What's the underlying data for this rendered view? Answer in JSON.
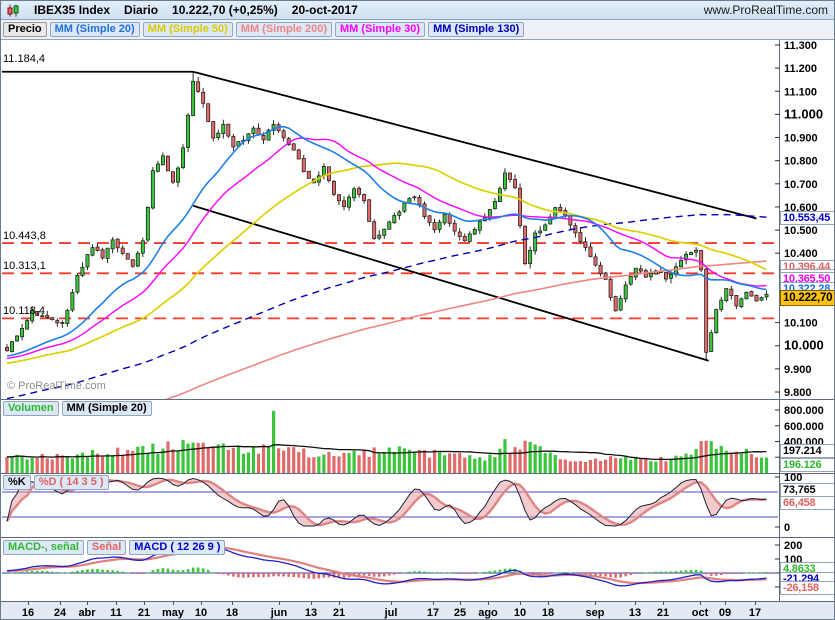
{
  "titlebar": {
    "symbol": "IBEX35 Index",
    "timeframe": "Diario",
    "last_price": "10.222,70 (+0,25%)",
    "date": "20-oct-2017",
    "site": "www.ProRealTime.com"
  },
  "price_legend": {
    "label": "Precio",
    "overlays": [
      {
        "label": "MM (Simple 20)",
        "color": "#1f6fe0"
      },
      {
        "label": "MM (Simple 50)",
        "color": "#d8cc00"
      },
      {
        "label": "MM (Simple 200)",
        "color": "#ef8585"
      },
      {
        "label": "MM (Simple 30)",
        "color": "#ff00ff"
      },
      {
        "label": "MM (Simple 130)",
        "color": "#0000b4"
      }
    ]
  },
  "price_panel": {
    "watermark": "© ProRealTime.com",
    "boxes": {
      "mm130": "10.553,45",
      "mm200": "10.396,44",
      "mm30": "10.365,50",
      "mm20": "10.322,28",
      "current": "10.222,70"
    }
  },
  "volume_panel": {
    "legend": [
      "Volumen",
      "MM (Simple 20)"
    ],
    "ma_box": "197.214",
    "vol_box": "196.126"
  },
  "stoch_panel": {
    "legend": [
      "%K",
      "%D ( 14 3 5 )"
    ],
    "k_box": "73,765",
    "d_box": "66,458"
  },
  "macd_panel": {
    "legend": [
      "MACD-, señal",
      "Señal",
      "MACD ( 12 26 9 )"
    ],
    "hist_box": "4,8633",
    "macd_box": "-21,294",
    "signal_box": "-26,158"
  },
  "chart_data": {
    "type": "candlestick",
    "title": "IBEX35 Index Diario 20-oct-2017",
    "bars": 152,
    "ylim": [
      9770,
      11322
    ],
    "last_close": 10222.7,
    "price_anchors": [
      [
        0,
        9980
      ],
      [
        3,
        10080
      ],
      [
        5,
        10150
      ],
      [
        8,
        10115
      ],
      [
        11,
        10090
      ],
      [
        14,
        10300
      ],
      [
        17,
        10430
      ],
      [
        19,
        10380
      ],
      [
        21,
        10450
      ],
      [
        23,
        10400
      ],
      [
        25,
        10350
      ],
      [
        27,
        10460
      ],
      [
        29,
        10750
      ],
      [
        31,
        10820
      ],
      [
        33,
        10700
      ],
      [
        35,
        10850
      ],
      [
        37,
        11150
      ],
      [
        39,
        11050
      ],
      [
        41,
        10900
      ],
      [
        43,
        10950
      ],
      [
        45,
        10860
      ],
      [
        47,
        10890
      ],
      [
        49,
        10940
      ],
      [
        51,
        10890
      ],
      [
        53,
        10960
      ],
      [
        55,
        10900
      ],
      [
        57,
        10850
      ],
      [
        59,
        10760
      ],
      [
        61,
        10700
      ],
      [
        63,
        10780
      ],
      [
        65,
        10650
      ],
      [
        67,
        10600
      ],
      [
        69,
        10680
      ],
      [
        71,
        10620
      ],
      [
        73,
        10460
      ],
      [
        75,
        10510
      ],
      [
        77,
        10560
      ],
      [
        79,
        10610
      ],
      [
        81,
        10650
      ],
      [
        83,
        10560
      ],
      [
        85,
        10500
      ],
      [
        87,
        10560
      ],
      [
        89,
        10500
      ],
      [
        91,
        10450
      ],
      [
        93,
        10510
      ],
      [
        95,
        10560
      ],
      [
        97,
        10620
      ],
      [
        99,
        10740
      ],
      [
        101,
        10690
      ],
      [
        103,
        10360
      ],
      [
        105,
        10480
      ],
      [
        107,
        10520
      ],
      [
        109,
        10600
      ],
      [
        111,
        10560
      ],
      [
        113,
        10480
      ],
      [
        115,
        10420
      ],
      [
        117,
        10350
      ],
      [
        119,
        10280
      ],
      [
        121,
        10150
      ],
      [
        123,
        10260
      ],
      [
        125,
        10340
      ],
      [
        127,
        10300
      ],
      [
        129,
        10330
      ],
      [
        131,
        10290
      ],
      [
        133,
        10340
      ],
      [
        135,
        10400
      ],
      [
        137,
        10420
      ],
      [
        138,
        10330
      ],
      [
        139,
        9965
      ],
      [
        141,
        10150
      ],
      [
        143,
        10250
      ],
      [
        145,
        10180
      ],
      [
        147,
        10230
      ],
      [
        149,
        10190
      ],
      [
        151,
        10222.7
      ]
    ],
    "prehistory_anchors": [
      [
        -200,
        9300
      ],
      [
        -160,
        9200
      ],
      [
        -120,
        9500
      ],
      [
        -80,
        9750
      ],
      [
        -40,
        9900
      ],
      [
        -1,
        9970
      ]
    ],
    "moving_averages": [
      {
        "name": "MM Simple 200",
        "period": 200,
        "color": "#ef8585",
        "style": "solid",
        "width": 1.6,
        "last_label": "10.396,44"
      },
      {
        "name": "MM Simple 130",
        "period": 130,
        "color": "#0000b8",
        "style": "dashed",
        "width": 1.4,
        "last_label": "10.553,45"
      },
      {
        "name": "MM Simple 50",
        "period": 50,
        "color": "#ddd000",
        "style": "solid",
        "width": 1.7
      },
      {
        "name": "MM Simple 30",
        "period": 30,
        "color": "#ff00ff",
        "style": "solid",
        "width": 1.4,
        "last_label": "10.365,50"
      },
      {
        "name": "MM Simple 20",
        "period": 20,
        "color": "#1f7fe8",
        "style": "solid",
        "width": 1.6,
        "last_label": "10.322,28"
      }
    ],
    "levels": [
      {
        "price": 10443.8,
        "label": "10.443,8"
      },
      {
        "price": 10313.1,
        "label": "10.313,1"
      },
      {
        "price": 10118.4,
        "label": "10.118,4"
      }
    ],
    "peak": {
      "price": 11184.4,
      "label": "11.184,4"
    },
    "channel_upper": [
      [
        37,
        11184.4
      ],
      [
        149,
        10550
      ]
    ],
    "channel_lower": [
      [
        37,
        10605
      ],
      [
        139.5,
        9935
      ]
    ],
    "price_ticks": [
      [
        11300,
        "11.300",
        0
      ],
      [
        11200,
        "11.200",
        0
      ],
      [
        11100,
        "11.100",
        0
      ],
      [
        11000,
        "11.000",
        1
      ],
      [
        10900,
        "10.900",
        0
      ],
      [
        10800,
        "10.800",
        0
      ],
      [
        10700,
        "10.700",
        0
      ],
      [
        10600,
        "10.600",
        0
      ],
      [
        10500,
        "10.500",
        0
      ],
      [
        10400,
        "10.400",
        0
      ],
      [
        10100,
        "10.100",
        0
      ],
      [
        10000,
        "10.000",
        1
      ],
      [
        9900,
        "9.900",
        0
      ],
      [
        9800,
        "9.800",
        0
      ]
    ],
    "volume": {
      "ma_period": 20,
      "last": 196126,
      "ma_last": 197214,
      "anchors": [
        [
          0,
          180000
        ],
        [
          10,
          220000
        ],
        [
          20,
          260000
        ],
        [
          30,
          310000
        ],
        [
          37,
          380000
        ],
        [
          45,
          280000
        ],
        [
          52,
          320000
        ],
        [
          54,
          300000
        ],
        [
          60,
          250000
        ],
        [
          70,
          230000
        ],
        [
          75,
          300000
        ],
        [
          80,
          260000
        ],
        [
          90,
          220000
        ],
        [
          95,
          180000
        ],
        [
          100,
          300000
        ],
        [
          103,
          380000
        ],
        [
          110,
          160000
        ],
        [
          115,
          140000
        ],
        [
          120,
          200000
        ],
        [
          125,
          180000
        ],
        [
          130,
          170000
        ],
        [
          135,
          210000
        ],
        [
          139,
          390000
        ],
        [
          143,
          300000
        ],
        [
          147,
          250000
        ],
        [
          151,
          196126
        ]
      ],
      "spikes": {
        "53": 790000,
        "99": 430000,
        "139": 410000
      },
      "ticks": [
        [
          800000,
          "800.000"
        ],
        [
          600000,
          "600.000"
        ],
        [
          400000,
          "400.000"
        ],
        [
          200000,
          "200.000"
        ]
      ]
    },
    "stochastic": {
      "params": "14 3 5",
      "levels": [
        70,
        20
      ],
      "k_last": 73.765,
      "d_last": 66.458,
      "ticks": [
        [
          100,
          "100"
        ],
        [
          0,
          "0"
        ]
      ]
    },
    "macd": {
      "params": "12 26 9",
      "hist_last": 4.8633,
      "macd_last": -21.294,
      "signal_last": -26.158,
      "ticks": [
        [
          200,
          "200"
        ],
        [
          100,
          "100"
        ],
        [
          0,
          "0"
        ],
        [
          -100,
          "-100"
        ]
      ]
    },
    "x_labels": [
      [
        27,
        "16"
      ],
      [
        59,
        "24"
      ],
      [
        86,
        "abr"
      ],
      [
        115,
        "11"
      ],
      [
        143,
        "21"
      ],
      [
        172,
        "may"
      ],
      [
        200,
        "10"
      ],
      [
        231,
        "18"
      ],
      [
        278,
        "jun"
      ],
      [
        310,
        "13"
      ],
      [
        338,
        "21"
      ],
      [
        390,
        "jul"
      ],
      [
        432,
        "17"
      ],
      [
        459,
        "25"
      ],
      [
        487,
        "ago"
      ],
      [
        519,
        "10"
      ],
      [
        547,
        "18"
      ],
      [
        594,
        "sep"
      ],
      [
        634,
        "13"
      ],
      [
        662,
        "21"
      ],
      [
        699,
        "oct"
      ],
      [
        724,
        "09"
      ],
      [
        754,
        "17"
      ]
    ]
  }
}
